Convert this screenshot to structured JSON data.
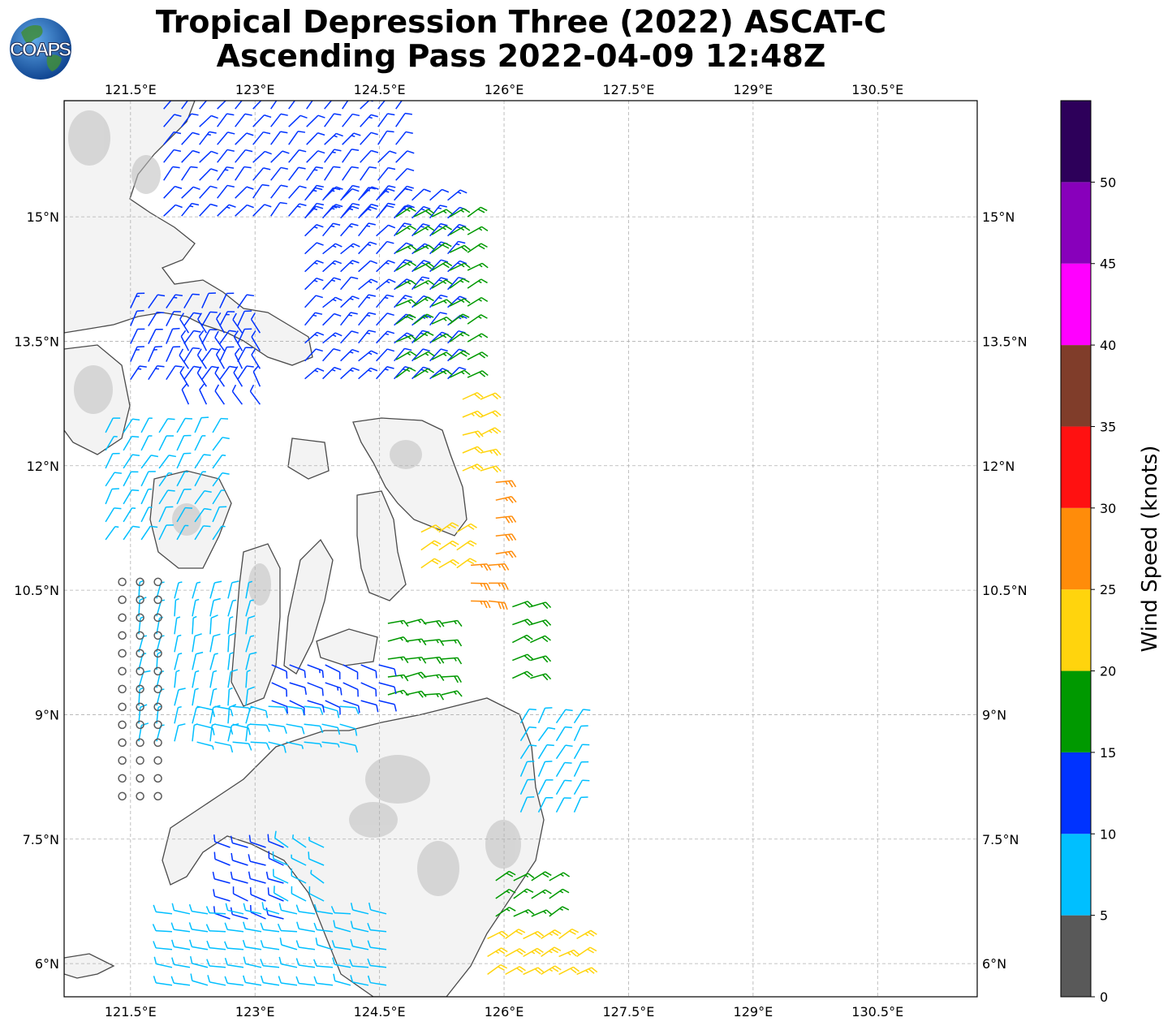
{
  "title": {
    "line1": "Tropical Depression Three (2022) ASCAT-C",
    "line2": "Ascending Pass 2022-04-09 12:48Z"
  },
  "logo": {
    "text": "COAPS",
    "icon": "globe-icon"
  },
  "map": {
    "lon_ticks": [
      "121.5°E",
      "123°E",
      "124.5°E",
      "126°E",
      "127.5°E",
      "129°E",
      "130.5°E"
    ],
    "lon_values": [
      121.5,
      123.0,
      124.5,
      126.0,
      127.5,
      129.0,
      130.5
    ],
    "lat_ticks": [
      "15°N",
      "13.5°N",
      "12°N",
      "10.5°N",
      "9°N",
      "7.5°N",
      "6°N"
    ],
    "lat_values": [
      15.0,
      13.5,
      12.0,
      10.5,
      9.0,
      7.5,
      6.0
    ],
    "lon_range": [
      120.7,
      131.7
    ],
    "lat_range": [
      5.6,
      16.4
    ],
    "grid": true,
    "grid_style": "dashed",
    "land_shading": "grayscale-topography",
    "coastline_color": "#444444"
  },
  "colorbar": {
    "label": "Wind Speed (knots)",
    "tick_labels": [
      "0",
      "5",
      "10",
      "15",
      "20",
      "25",
      "30",
      "35",
      "40",
      "45",
      "50"
    ],
    "tick_values": [
      0,
      5,
      10,
      15,
      20,
      25,
      30,
      35,
      40,
      45,
      50
    ],
    "max": 55,
    "bins": [
      {
        "from": 0,
        "to": 5,
        "color": "#595959"
      },
      {
        "from": 5,
        "to": 10,
        "color": "#00bfff"
      },
      {
        "from": 10,
        "to": 15,
        "color": "#0033ff"
      },
      {
        "from": 15,
        "to": 20,
        "color": "#009900"
      },
      {
        "from": 20,
        "to": 25,
        "color": "#ffd40d"
      },
      {
        "from": 25,
        "to": 30,
        "color": "#ff8c0a"
      },
      {
        "from": 30,
        "to": 35,
        "color": "#ff1111"
      },
      {
        "from": 35,
        "to": 40,
        "color": "#803d2a"
      },
      {
        "from": 40,
        "to": 45,
        "color": "#ff00ff"
      },
      {
        "from": 45,
        "to": 50,
        "color": "#8800bb"
      },
      {
        "from": 50,
        "to": 55,
        "color": "#2d005a"
      }
    ]
  },
  "wind_regions": [
    {
      "lon": [
        121.9,
        124.9
      ],
      "lat": [
        14.8,
        16.3
      ],
      "speed": 12,
      "dir": 40
    },
    {
      "lon": [
        123.6,
        125.4
      ],
      "lat": [
        13.0,
        15.2
      ],
      "speed": 13,
      "dir": 45
    },
    {
      "lon": [
        124.7,
        125.6
      ],
      "lat": [
        12.9,
        15.0
      ],
      "speed": 17,
      "dir": 60
    },
    {
      "lon": [
        125.5,
        125.9
      ],
      "lat": [
        11.9,
        12.8
      ],
      "speed": 22,
      "dir": 70
    },
    {
      "lon": [
        125.9,
        126.0
      ],
      "lat": [
        10.9,
        11.8
      ],
      "speed": 27,
      "dir": 80
    },
    {
      "lon": [
        125.0,
        125.6
      ],
      "lat": [
        10.6,
        11.2
      ],
      "speed": 22,
      "dir": 60
    },
    {
      "lon": [
        125.6,
        126.0
      ],
      "lat": [
        10.2,
        10.8
      ],
      "speed": 27,
      "dir": 90
    },
    {
      "lon": [
        124.6,
        125.3
      ],
      "lat": [
        9.2,
        10.1
      ],
      "speed": 17,
      "dir": 80
    },
    {
      "lon": [
        121.5,
        122.8
      ],
      "lat": [
        13.0,
        13.9
      ],
      "speed": 12,
      "dir": 30
    },
    {
      "lon": [
        122.2,
        123.2
      ],
      "lat": [
        12.7,
        13.6
      ],
      "speed": 11,
      "dir": 330
    },
    {
      "lon": [
        121.2,
        122.6
      ],
      "lat": [
        11.0,
        12.4
      ],
      "speed": 8,
      "dir": 30
    },
    {
      "lon": [
        121.6,
        122.9
      ],
      "lat": [
        8.6,
        10.4
      ],
      "speed": 7,
      "dir": 10
    },
    {
      "lon": [
        121.4,
        122.0
      ],
      "lat": [
        8.0,
        10.6
      ],
      "speed": 3,
      "dir": 0
    },
    {
      "lon": [
        122.3,
        124.2
      ],
      "lat": [
        8.6,
        9.1
      ],
      "speed": 8,
      "dir": 100
    },
    {
      "lon": [
        123.2,
        124.5
      ],
      "lat": [
        9.0,
        9.6
      ],
      "speed": 12,
      "dir": 110
    },
    {
      "lon": [
        122.7,
        123.4
      ],
      "lat": [
        6.4,
        7.4
      ],
      "speed": 11,
      "dir": 290
    },
    {
      "lon": [
        123.4,
        124.0
      ],
      "lat": [
        6.6,
        7.4
      ],
      "speed": 8,
      "dir": 300
    },
    {
      "lon": [
        122.0,
        124.7
      ],
      "lat": [
        5.7,
        6.6
      ],
      "speed": 9,
      "dir": 280
    },
    {
      "lon": [
        125.9,
        126.7
      ],
      "lat": [
        6.5,
        7.0
      ],
      "speed": 17,
      "dir": 60
    },
    {
      "lon": [
        126.2,
        126.9
      ],
      "lat": [
        7.7,
        8.9
      ],
      "speed": 9,
      "dir": 30
    },
    {
      "lon": [
        125.8,
        127.0
      ],
      "lat": [
        5.7,
        6.3
      ],
      "speed": 22,
      "dir": 60
    },
    {
      "lon": [
        126.1,
        126.4
      ],
      "lat": [
        9.4,
        10.3
      ],
      "speed": 19,
      "dir": 70
    }
  ]
}
